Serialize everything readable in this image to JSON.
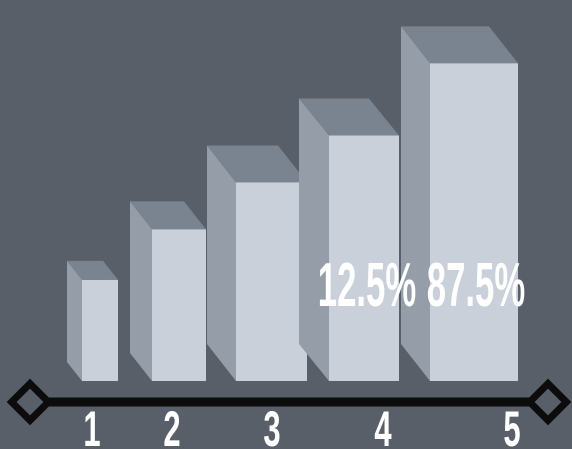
{
  "chart_data": {
    "type": "bar",
    "style": "3d-columns",
    "categories": [
      "1",
      "2",
      "3",
      "4",
      "5"
    ],
    "values": [
      28,
      42,
      55,
      68,
      88
    ],
    "ylim": [
      0,
      100
    ],
    "labels": [
      "",
      "",
      "",
      "12.5%",
      "87.5%"
    ],
    "title": "",
    "xlabel": "",
    "ylabel": "",
    "grid": false,
    "legend": "none"
  },
  "colors": {
    "background": "#585f68",
    "front": "#c9d0da",
    "side": "#959ea8",
    "top": "#7a8490",
    "axis": "#0c0c0c",
    "label": "#ffffff"
  }
}
